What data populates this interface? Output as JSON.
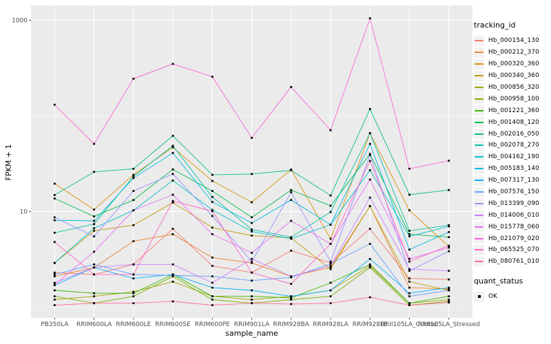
{
  "chart_data": {
    "type": "line",
    "title": "",
    "xlabel": "sample_name",
    "ylabel": "FPKM + 1",
    "legend_title": "tracking_id",
    "quant_legend": {
      "title": "quant_status",
      "items": [
        "OK"
      ]
    },
    "x_categories": [
      "PB350LA",
      "RRIM600LA",
      "RRIM600LE",
      "RRIM600SE",
      "RRIM600PE",
      "RRIM901LA",
      "RRIM928BA",
      "RRIM928LA",
      "RRIM928LE",
      "RRII105LA_Control",
      "RRII105LA_Stressed"
    ],
    "y_axis": {
      "scale": "log10",
      "breaks": [
        10,
        1000
      ],
      "labels": [
        "10",
        "1000"
      ],
      "minor_breaks": [
        1,
        100
      ],
      "grid": true,
      "approx_range": [
        0.75,
        1400
      ]
    },
    "legend_position": "right",
    "series": [
      {
        "name": "Hb_000154_130",
        "color": "#F8766D",
        "values": [
          2.3,
          2.2,
          2.8,
          6.6,
          2.7,
          2.3,
          3.9,
          2.9,
          6.6,
          2.0,
          1.95
        ]
      },
      {
        "name": "Hb_000212_370",
        "color": "#EA8331",
        "values": [
          2.1,
          2.6,
          4.9,
          5.8,
          3.3,
          2.9,
          2.1,
          2.6,
          11.4,
          1.6,
          1.55
        ]
      },
      {
        "name": "Hb_000320_360",
        "color": "#D89000",
        "values": [
          19.6,
          10.5,
          24.2,
          47,
          20.9,
          12.5,
          27.5,
          5.2,
          66,
          10.3,
          4.3
        ]
      },
      {
        "name": "Hb_000340_360",
        "color": "#C09B00",
        "values": [
          2.9,
          6.3,
          7.2,
          12.4,
          6.8,
          5.6,
          5.3,
          2.5,
          11.4,
          1.85,
          1.5
        ]
      },
      {
        "name": "Hb_000856_320",
        "color": "#A3A500",
        "values": [
          1.2,
          1.3,
          1.45,
          1.85,
          1.3,
          1.2,
          1.3,
          1.5,
          2.7,
          1.1,
          1.2
        ]
      },
      {
        "name": "Hb_000958_100",
        "color": "#7CAE00",
        "values": [
          1.3,
          1.1,
          1.3,
          2.1,
          1.2,
          1.1,
          1.2,
          1.3,
          2.6,
          1.05,
          1.15
        ]
      },
      {
        "name": "Hb_001221_360",
        "color": "#39B600",
        "values": [
          1.5,
          1.4,
          1.4,
          2.2,
          1.3,
          1.3,
          1.25,
          1.8,
          2.8,
          1.1,
          1.3
        ]
      },
      {
        "name": "Hb_001408_120",
        "color": "#00BB4E",
        "values": [
          13.7,
          8.9,
          13.2,
          27.6,
          16.4,
          8.7,
          16.8,
          11.5,
          40,
          5.8,
          5.4
        ]
      },
      {
        "name": "Hb_002016_050",
        "color": "#00BF7D",
        "values": [
          14.9,
          26,
          28,
          62,
          24.2,
          24.7,
          27,
          14.7,
          118,
          15,
          16.8
        ]
      },
      {
        "name": "Hb_002078_270",
        "color": "#00C1A3",
        "values": [
          6.0,
          7.4,
          23.3,
          48.7,
          14.2,
          6.5,
          5.4,
          9.9,
          66,
          6.3,
          7.2
        ]
      },
      {
        "name": "Hb_004162_190",
        "color": "#00BFC4",
        "values": [
          2.9,
          6.7,
          10.3,
          21.1,
          10.4,
          6.2,
          5.2,
          7.3,
          27,
          5.5,
          7.0
        ]
      },
      {
        "name": "Hb_005183_140",
        "color": "#00BAE0",
        "values": [
          8.1,
          8.0,
          22.4,
          41,
          12.6,
          7.6,
          13.2,
          7.3,
          51,
          4.0,
          6.1
        ]
      },
      {
        "name": "Hb_007317_130",
        "color": "#00B0F6",
        "values": [
          1.7,
          2.6,
          2.0,
          2.2,
          1.6,
          1.5,
          1.3,
          1.5,
          3.2,
          1.4,
          1.6
        ]
      },
      {
        "name": "Hb_007576_150",
        "color": "#619CFF",
        "values": [
          2.2,
          2.8,
          2.2,
          2.15,
          2.1,
          1.9,
          2.05,
          2.85,
          4.6,
          1.3,
          1.5
        ]
      },
      {
        "name": "Hb_013399_090",
        "color": "#9590FF",
        "values": [
          8.7,
          5.5,
          16.4,
          24.7,
          9.0,
          3.0,
          15.9,
          3.0,
          39,
          2.4,
          3.85
        ]
      },
      {
        "name": "Hb_014006_010",
        "color": "#C77CFF",
        "values": [
          1.8,
          2.6,
          2.8,
          2.8,
          1.8,
          3.2,
          2.1,
          2.7,
          14.0,
          2.5,
          2.4
        ]
      },
      {
        "name": "Hb_015778_060",
        "color": "#E76BF3",
        "values": [
          1.72,
          3.8,
          10.3,
          15,
          5.8,
          3.7,
          8.0,
          4.6,
          21.6,
          3.2,
          4.2
        ]
      },
      {
        "name": "Hb_021079_020",
        "color": "#FA62DB",
        "values": [
          131,
          51,
          245,
          350,
          257,
          59,
          201,
          71,
          1050,
          28,
          34
        ]
      },
      {
        "name": "Hb_065525_070",
        "color": "#FF62BC",
        "values": [
          4.8,
          2.2,
          2.2,
          12.9,
          10.1,
          2.3,
          1.75,
          4.6,
          33.8,
          3.0,
          4.4
        ]
      },
      {
        "name": "Hb_080761_010",
        "color": "#FF6A98",
        "values": [
          1.05,
          1.1,
          1.1,
          1.15,
          1.05,
          1.1,
          1.08,
          1.1,
          1.27,
          1.05,
          1.12
        ]
      }
    ],
    "colors": {
      "panel_bg": "#EBEBEB",
      "grid": "#FFFFFF",
      "point": "#000000",
      "axis_text": "#4D4D4D",
      "tick": "#333333",
      "legend_key_bg": "#F2F2F2"
    }
  }
}
